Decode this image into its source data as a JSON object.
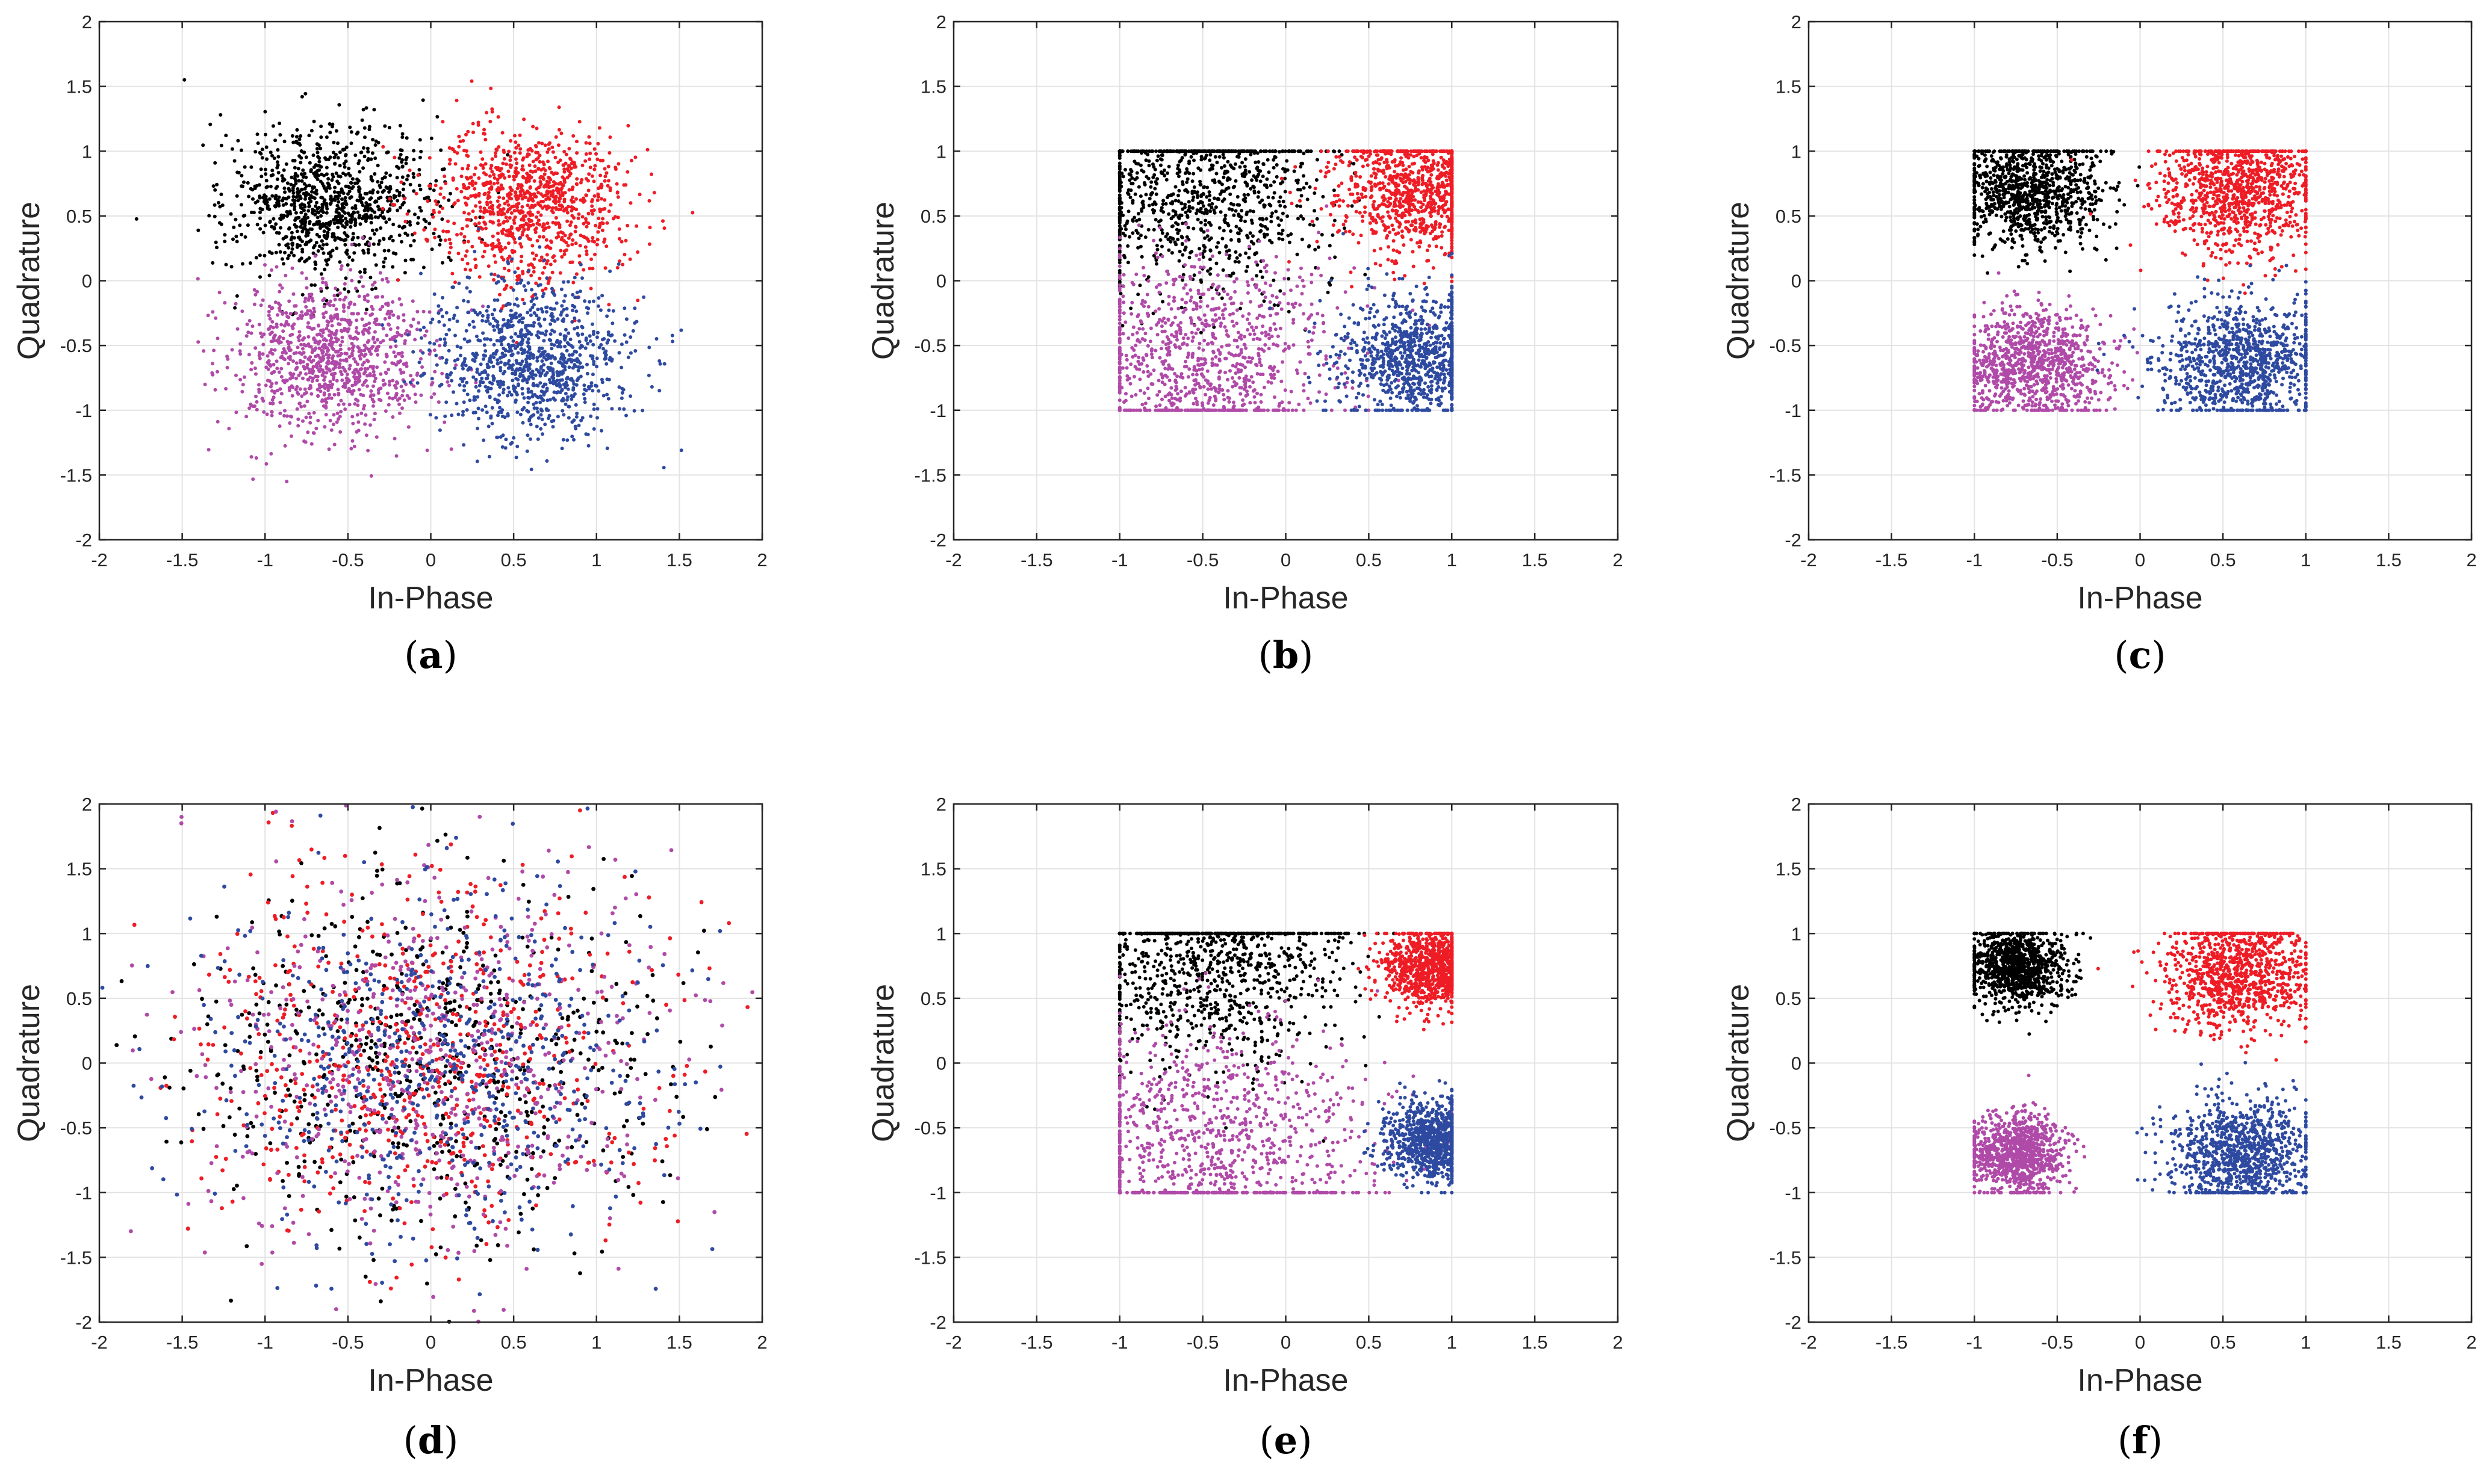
{
  "chart_data": [
    {
      "panel": "a",
      "type": "scatter",
      "xlabel": "In-Phase",
      "ylabel": "Quadrature",
      "xlim": [
        -2,
        2
      ],
      "ylim": [
        -2,
        2
      ],
      "xticks": [
        -2,
        -1.5,
        -1,
        -0.5,
        0,
        0.5,
        1,
        1.5,
        2
      ],
      "yticks": [
        -2,
        -1.5,
        -1,
        -0.5,
        0,
        0.5,
        1,
        1.5,
        2
      ],
      "grid": true,
      "series": [
        {
          "color": "#000000",
          "center": [
            -0.6,
            0.6
          ],
          "spread": 0.3,
          "clip": null
        },
        {
          "color": "#ee1c25",
          "center": [
            0.6,
            0.6
          ],
          "spread": 0.3,
          "clip": null
        },
        {
          "color": "#b04aa8",
          "center": [
            -0.6,
            -0.6
          ],
          "spread": 0.3,
          "clip": null
        },
        {
          "color": "#2e4aa0",
          "center": [
            0.6,
            -0.6
          ],
          "spread": 0.3,
          "clip": null
        }
      ]
    },
    {
      "panel": "b",
      "type": "scatter",
      "xlabel": "In-Phase",
      "ylabel": "Quadrature",
      "xlim": [
        -2,
        2
      ],
      "ylim": [
        -2,
        2
      ],
      "xticks": [
        -2,
        -1.5,
        -1,
        -0.5,
        0,
        0.5,
        1,
        1.5,
        2
      ],
      "yticks": [
        -2,
        -1.5,
        -1,
        -0.5,
        0,
        0.5,
        1,
        1.5,
        2
      ],
      "grid": true,
      "series": [
        {
          "color": "#000000",
          "center": [
            -0.5,
            0.7
          ],
          "spread": 0.4,
          "clip": [
            -1,
            1
          ]
        },
        {
          "color": "#ee1c25",
          "center": [
            0.8,
            0.7
          ],
          "spread": 0.25,
          "clip": [
            -1,
            1
          ]
        },
        {
          "color": "#b04aa8",
          "center": [
            -0.5,
            -0.6
          ],
          "spread": 0.4,
          "clip": [
            -1,
            1
          ]
        },
        {
          "color": "#2e4aa0",
          "center": [
            0.8,
            -0.6
          ],
          "spread": 0.25,
          "clip": [
            -1,
            1
          ]
        }
      ]
    },
    {
      "panel": "c",
      "type": "scatter",
      "xlabel": "In-Phase",
      "ylabel": "Quadrature",
      "xlim": [
        -2,
        2
      ],
      "ylim": [
        -2,
        2
      ],
      "xticks": [
        -2,
        -1.5,
        -1,
        -0.5,
        0,
        0.5,
        1,
        1.5,
        2
      ],
      "yticks": [
        -2,
        -1.5,
        -1,
        -0.5,
        0,
        0.5,
        1,
        1.5,
        2
      ],
      "grid": true,
      "series": [
        {
          "color": "#000000",
          "center": [
            -0.65,
            0.7
          ],
          "spread": 0.22,
          "clip": [
            -1,
            1
          ]
        },
        {
          "color": "#ee1c25",
          "center": [
            0.6,
            0.7
          ],
          "spread": 0.25,
          "clip": [
            -1,
            1
          ]
        },
        {
          "color": "#b04aa8",
          "center": [
            -0.65,
            -0.65
          ],
          "spread": 0.22,
          "clip": [
            -1,
            1
          ]
        },
        {
          "color": "#2e4aa0",
          "center": [
            0.6,
            -0.65
          ],
          "spread": 0.25,
          "clip": [
            -1,
            1
          ]
        }
      ]
    },
    {
      "panel": "d",
      "type": "scatter",
      "xlabel": "In-Phase",
      "ylabel": "Quadrature",
      "xlim": [
        -2,
        2
      ],
      "ylim": [
        -2,
        2
      ],
      "xticks": [
        -2,
        -1.5,
        -1,
        -0.5,
        0,
        0.5,
        1,
        1.5,
        2
      ],
      "yticks": [
        -2,
        -1.5,
        -1,
        -0.5,
        0,
        0.5,
        1,
        1.5,
        2
      ],
      "grid": true,
      "series": [
        {
          "color": "#000000",
          "center": [
            0,
            0
          ],
          "spread": 0.7,
          "clip": null
        },
        {
          "color": "#ee1c25",
          "center": [
            0,
            0
          ],
          "spread": 0.7,
          "clip": null
        },
        {
          "color": "#b04aa8",
          "center": [
            0,
            0
          ],
          "spread": 0.7,
          "clip": null
        },
        {
          "color": "#2e4aa0",
          "center": [
            0,
            0
          ],
          "spread": 0.7,
          "clip": null
        }
      ]
    },
    {
      "panel": "e",
      "type": "scatter",
      "xlabel": "In-Phase",
      "ylabel": "Quadrature",
      "xlim": [
        -2,
        2
      ],
      "ylim": [
        -2,
        2
      ],
      "xticks": [
        -2,
        -1.5,
        -1,
        -0.5,
        0,
        0.5,
        1,
        1.5,
        2
      ],
      "yticks": [
        -2,
        -1.5,
        -1,
        -0.5,
        0,
        0.5,
        1,
        1.5,
        2
      ],
      "grid": true,
      "series": [
        {
          "color": "#000000",
          "center": [
            -0.4,
            0.78
          ],
          "spread": 0.4,
          "clip": [
            -1,
            1
          ]
        },
        {
          "color": "#ee1c25",
          "center": [
            0.88,
            0.75
          ],
          "spread": 0.15,
          "clip": [
            -1,
            1
          ]
        },
        {
          "color": "#b04aa8",
          "center": [
            -0.4,
            -0.6
          ],
          "spread": 0.45,
          "clip": [
            -1,
            1
          ]
        },
        {
          "color": "#2e4aa0",
          "center": [
            0.9,
            -0.6
          ],
          "spread": 0.15,
          "clip": [
            -1,
            1
          ]
        }
      ]
    },
    {
      "panel": "f",
      "type": "scatter",
      "xlabel": "In-Phase",
      "ylabel": "Quadrature",
      "xlim": [
        -2,
        2
      ],
      "ylim": [
        -2,
        2
      ],
      "xticks": [
        -2,
        -1.5,
        -1,
        -0.5,
        0,
        0.5,
        1,
        1.5,
        2
      ],
      "yticks": [
        -2,
        -1.5,
        -1,
        -0.5,
        0,
        0.5,
        1,
        1.5,
        2
      ],
      "grid": true,
      "series": [
        {
          "color": "#000000",
          "center": [
            -0.75,
            0.75
          ],
          "spread": 0.15,
          "clip": [
            -1,
            1
          ]
        },
        {
          "color": "#ee1c25",
          "center": [
            0.6,
            0.7
          ],
          "spread": 0.22,
          "clip": [
            -1,
            1
          ]
        },
        {
          "color": "#b04aa8",
          "center": [
            -0.75,
            -0.7
          ],
          "spread": 0.15,
          "clip": [
            -1,
            1
          ]
        },
        {
          "color": "#2e4aa0",
          "center": [
            0.6,
            -0.7
          ],
          "spread": 0.22,
          "clip": [
            -1,
            1
          ]
        }
      ]
    }
  ],
  "captions": [
    "a",
    "b",
    "c",
    "d",
    "e",
    "f"
  ]
}
